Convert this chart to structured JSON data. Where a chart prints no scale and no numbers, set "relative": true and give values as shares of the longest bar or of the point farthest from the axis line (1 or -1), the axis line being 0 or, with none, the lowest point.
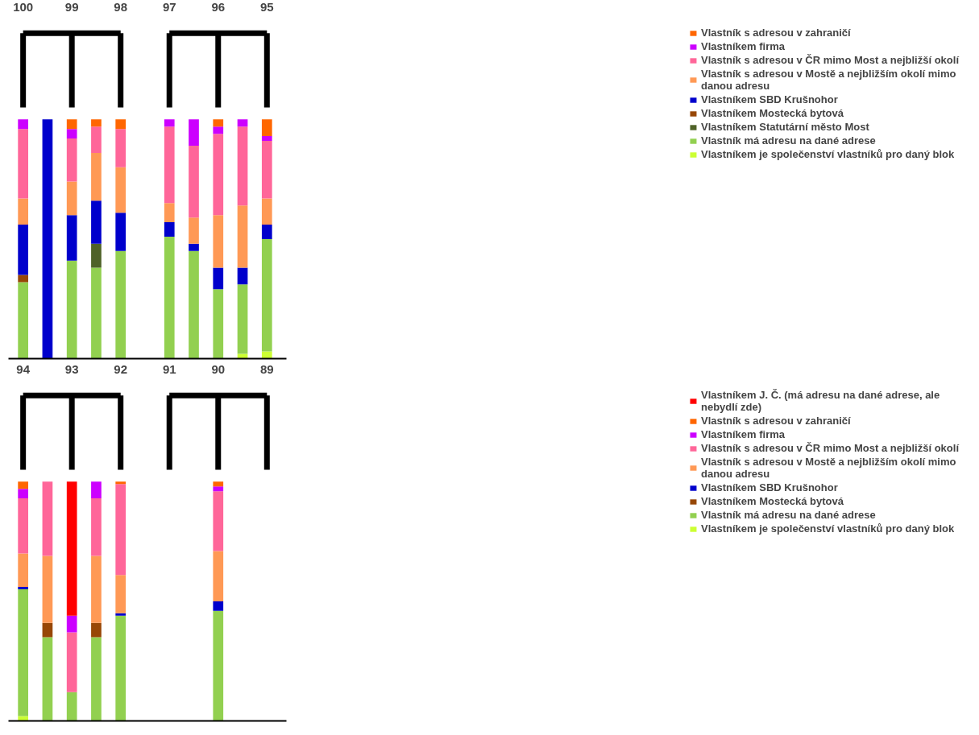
{
  "chart_data": [
    {
      "type": "bar",
      "stacked": true,
      "relative": true,
      "legend": "right",
      "categories": [
        "100",
        null,
        "99",
        null,
        "98",
        null,
        "97",
        null,
        "96",
        null,
        "95"
      ],
      "series": [
        {
          "name": "Vlastníkem je společenství vlastníků pro daný blok",
          "color": "#ccff33",
          "values": [
            null,
            null,
            null,
            null,
            null,
            null,
            null,
            null,
            null,
            0.02,
            0.03
          ]
        },
        {
          "name": "Vlastník má adresu na dané adrese",
          "color": "#92d050",
          "values": [
            0.32,
            null,
            0.41,
            0.38,
            0.45,
            null,
            0.51,
            0.45,
            0.29,
            0.29,
            0.47
          ]
        },
        {
          "name": "Vlastníkem Statutární město Most",
          "color": "#4f6228",
          "values": [
            null,
            null,
            null,
            0.1,
            null,
            null,
            null,
            null,
            null,
            null,
            null
          ]
        },
        {
          "name": "Vlastníkem Mostecká bytová",
          "color": "#974706",
          "values": [
            0.03,
            null,
            null,
            null,
            null,
            null,
            null,
            null,
            null,
            null,
            null
          ]
        },
        {
          "name": "Vlastníkem SBD Krušnohor",
          "color": "#0000cc",
          "values": [
            0.21,
            1,
            0.19,
            0.18,
            0.16,
            null,
            0.06,
            0.03,
            0.09,
            0.07,
            0.06
          ]
        },
        {
          "name": "Vlastník s adresou v Mostě a nejbližším okolí mimo danou adresu",
          "color": "#ff9955",
          "values": [
            0.11,
            null,
            0.14,
            0.2,
            0.19,
            null,
            0.08,
            0.11,
            0.22,
            0.26,
            0.11
          ]
        },
        {
          "name": "Vlastník s adresou v ČR mimo Most a nejbližší okolí",
          "color": "#ff6699",
          "values": [
            0.29,
            null,
            0.18,
            0.11,
            0.16,
            null,
            0.32,
            0.3,
            0.34,
            0.33,
            0.24
          ]
        },
        {
          "name": "Vlastníkem firma",
          "color": "#cc00ff",
          "values": [
            0.04,
            null,
            0.04,
            null,
            null,
            null,
            0.03,
            0.11,
            0.03,
            0.03,
            0.02
          ]
        },
        {
          "name": "Vlastník s adresou v zahraničí",
          "color": "#ff6600",
          "values": [
            null,
            null,
            0.04,
            0.03,
            0.04,
            null,
            null,
            null,
            0.03,
            null,
            0.07
          ]
        }
      ]
    },
    {
      "type": "bar",
      "stacked": true,
      "relative": true,
      "legend": "right",
      "categories": [
        "94",
        null,
        "93",
        null,
        "92",
        null,
        "91",
        null,
        "90",
        null,
        "89"
      ],
      "series": [
        {
          "name": "Vlastníkem je společenství vlastníků pro daný blok",
          "color": "#ccff33",
          "values": [
            0.02,
            null,
            null,
            null,
            null,
            null,
            null,
            null,
            null,
            null,
            null
          ]
        },
        {
          "name": "Vlastník má adresu na dané adrese",
          "color": "#92d050",
          "values": [
            0.53,
            0.35,
            0.12,
            0.35,
            0.44,
            null,
            null,
            null,
            0.46,
            null,
            null
          ]
        },
        {
          "name": "Vlastníkem Mostecká bytová",
          "color": "#974706",
          "values": [
            null,
            0.06,
            null,
            0.06,
            null,
            null,
            null,
            null,
            null,
            null,
            null
          ]
        },
        {
          "name": "Vlastníkem SBD Krušnohor",
          "color": "#0000cc",
          "values": [
            0.01,
            null,
            null,
            null,
            0.01,
            null,
            null,
            null,
            0.04,
            null,
            null
          ]
        },
        {
          "name": "Vlastník s adresou v Mostě a nejbližším okolí mimo danou adresu",
          "color": "#ff9955",
          "values": [
            0.14,
            0.28,
            null,
            0.28,
            0.16,
            null,
            null,
            null,
            0.21,
            null,
            null
          ]
        },
        {
          "name": "Vlastník s adresou v ČR mimo Most a nejbližší okolí",
          "color": "#ff6699",
          "values": [
            0.23,
            0.31,
            0.25,
            0.24,
            0.38,
            null,
            null,
            null,
            0.25,
            null,
            null
          ]
        },
        {
          "name": "Vlastníkem firma",
          "color": "#cc00ff",
          "values": [
            0.04,
            null,
            0.07,
            0.07,
            null,
            null,
            null,
            null,
            0.02,
            null,
            null
          ]
        },
        {
          "name": "Vlastník s adresou v zahraničí",
          "color": "#ff6600",
          "values": [
            0.03,
            null,
            null,
            null,
            0.01,
            null,
            null,
            null,
            0.02,
            null,
            null
          ]
        },
        {
          "name": "Vlastníkem J. Č. (má adresu na dané adrese, ale nebydlí zde)",
          "color": "#ff0000",
          "values": [
            null,
            null,
            0.56,
            null,
            null,
            null,
            null,
            null,
            null,
            null,
            null
          ]
        }
      ]
    }
  ]
}
